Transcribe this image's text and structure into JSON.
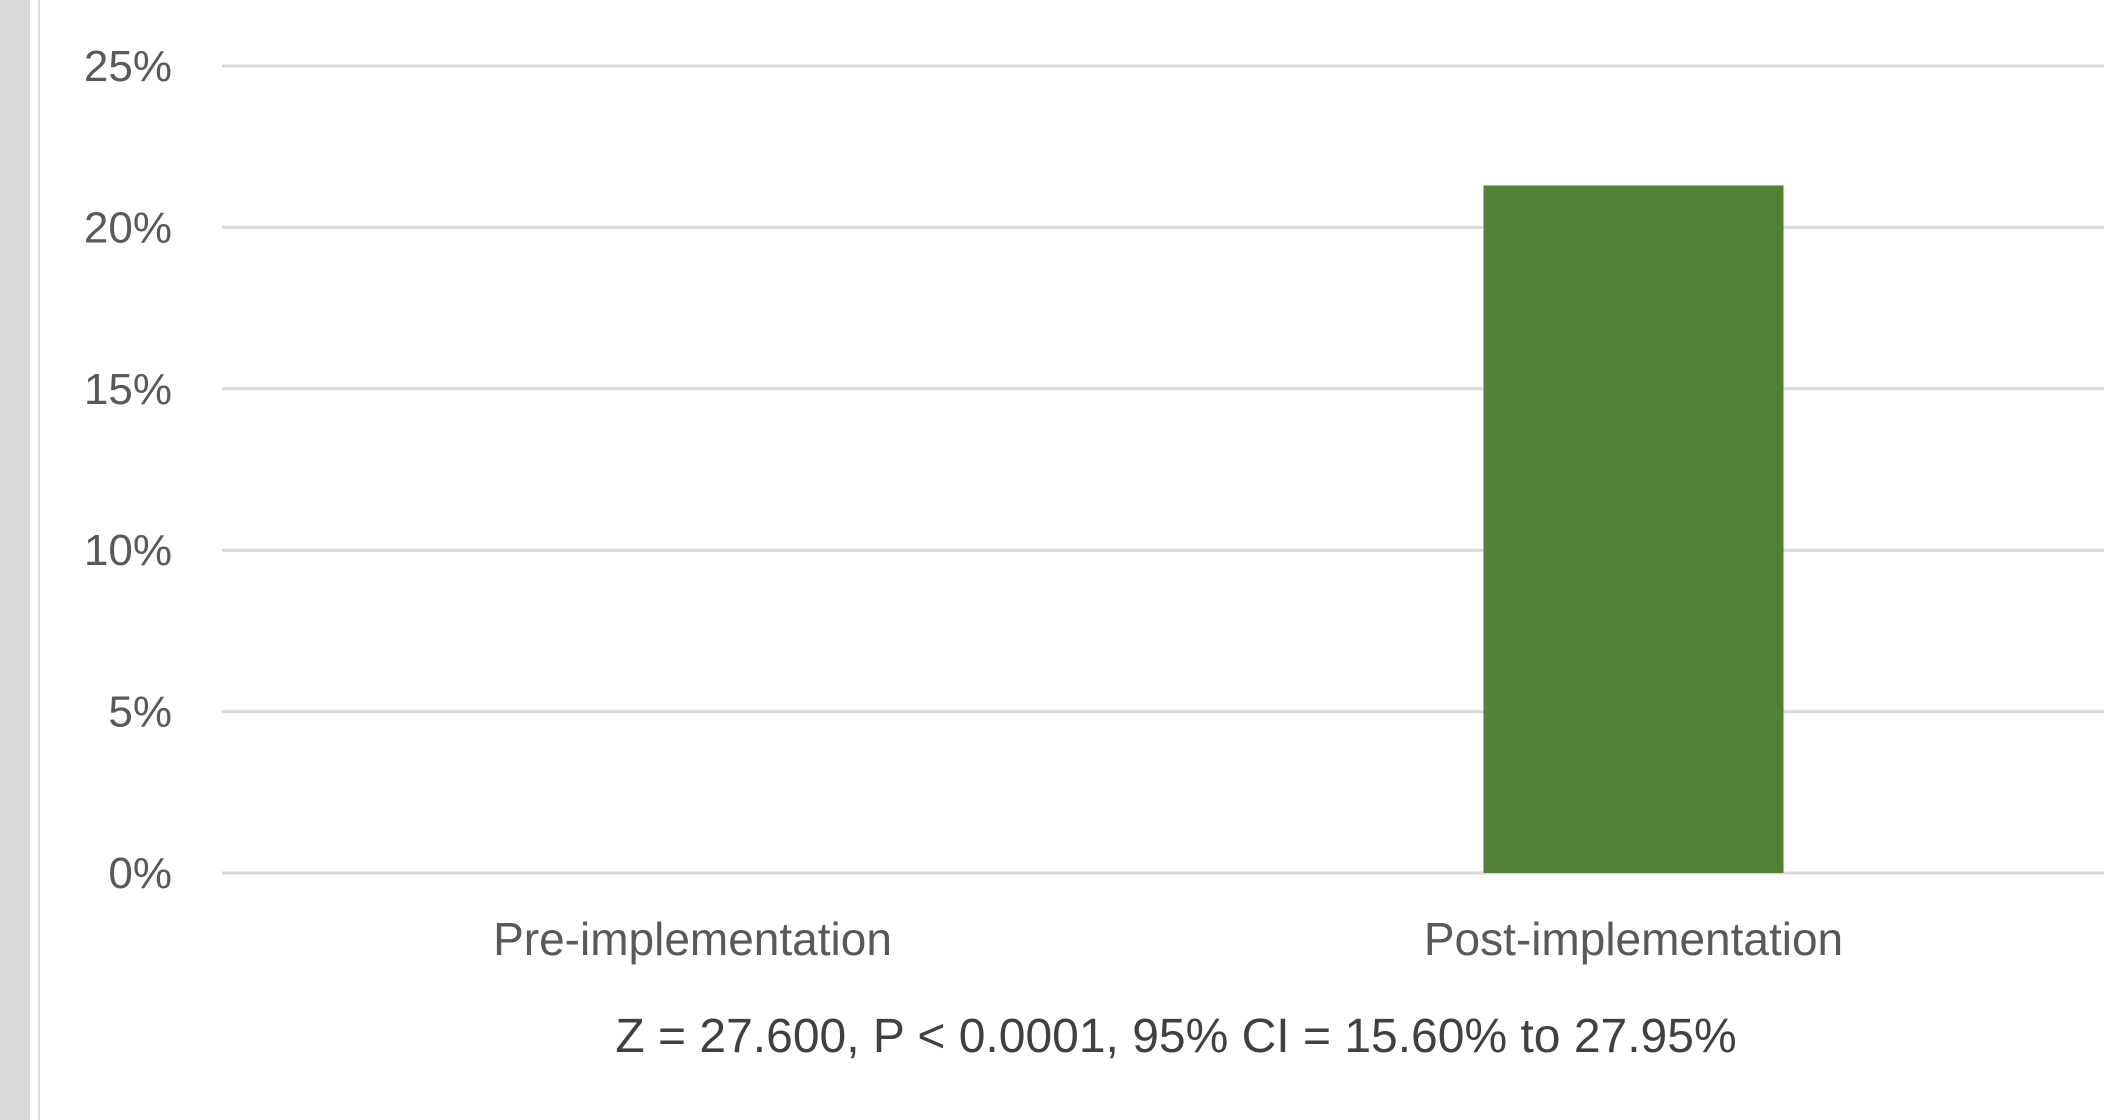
{
  "chart_data": {
    "type": "bar",
    "categories": [
      "Pre-implementation",
      "Post-implementation"
    ],
    "values": [
      0,
      21.3
    ],
    "value_format": "percent",
    "title": "",
    "xlabel": "",
    "ylabel": "",
    "ylim": [
      0,
      25
    ],
    "yticks": [
      0,
      5,
      10,
      15,
      20,
      25
    ],
    "ytick_labels": [
      "0%",
      "5%",
      "10%",
      "15%",
      "20%",
      "25%"
    ],
    "grid": true,
    "legend": "none",
    "bar_color": "#538135",
    "annotation": "Z = 27.600, P < 0.0001, 95% CI = 15.60% to 27.95%"
  }
}
